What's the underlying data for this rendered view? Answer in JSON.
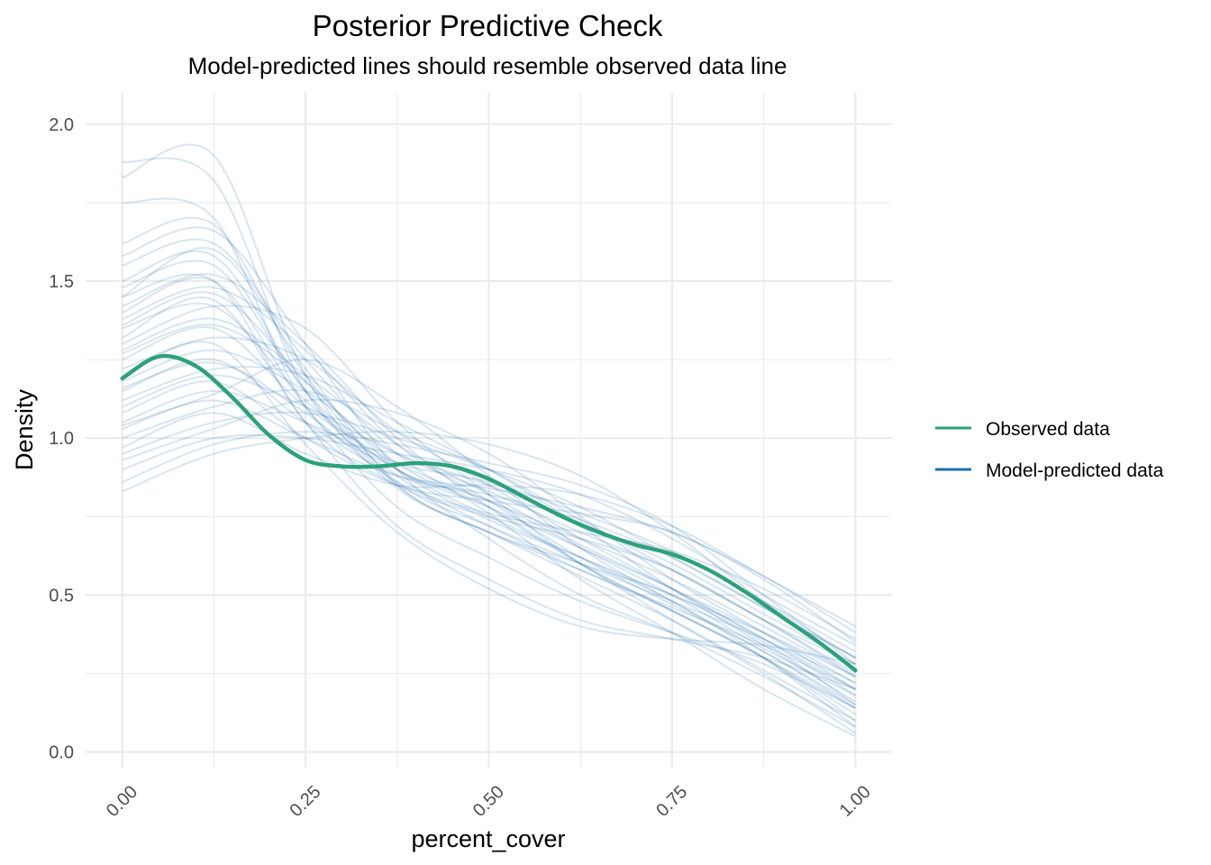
{
  "chart_data": {
    "type": "line",
    "title": "Posterior Predictive Check",
    "subtitle": "Model-predicted lines should resemble observed data line",
    "xlabel": "percent_cover",
    "ylabel": "Density",
    "xlim": [
      -0.05,
      1.05
    ],
    "ylim": [
      -0.05,
      2.1
    ],
    "x_ticks": [
      "0.00",
      "0.25",
      "0.50",
      "0.75",
      "1.00"
    ],
    "y_ticks": [
      "0.0",
      "0.5",
      "1.0",
      "1.5",
      "2.0"
    ],
    "grid": true,
    "legend_position": "right",
    "legend": [
      {
        "label": "Observed data",
        "color": "#2ca17a"
      },
      {
        "label": "Model-predicted data",
        "color": "#1f6fb4"
      }
    ],
    "observed_series": {
      "name": "Observed data",
      "color": "#2ca17a",
      "x": [
        0,
        0.05,
        0.1,
        0.15,
        0.2,
        0.25,
        0.3,
        0.35,
        0.4,
        0.45,
        0.5,
        0.55,
        0.6,
        0.65,
        0.7,
        0.75,
        0.8,
        0.85,
        0.9,
        0.95,
        1.0
      ],
      "y": [
        1.19,
        1.26,
        1.23,
        1.13,
        1.01,
        0.93,
        0.91,
        0.91,
        0.92,
        0.91,
        0.87,
        0.81,
        0.75,
        0.7,
        0.66,
        0.63,
        0.58,
        0.51,
        0.43,
        0.35,
        0.26
      ]
    },
    "predicted_series": {
      "name": "Model-predicted data",
      "color": "#1f6fb4",
      "opacity": 0.18,
      "x": [
        0,
        0.125,
        0.25,
        0.375,
        0.5,
        0.625,
        0.75,
        0.875,
        1.0
      ],
      "draws": [
        [
          1.83,
          1.9,
          1.2,
          0.85,
          0.7,
          0.6,
          0.5,
          0.35,
          0.15
        ],
        [
          1.88,
          1.82,
          1.15,
          0.88,
          0.72,
          0.58,
          0.45,
          0.3,
          0.1
        ],
        [
          1.75,
          1.7,
          1.1,
          0.9,
          0.75,
          0.62,
          0.48,
          0.3,
          0.08
        ],
        [
          1.62,
          1.68,
          1.2,
          0.92,
          0.78,
          0.6,
          0.42,
          0.25,
          0.06
        ],
        [
          1.55,
          1.62,
          1.25,
          0.95,
          0.76,
          0.55,
          0.38,
          0.2,
          0.05
        ],
        [
          1.48,
          1.55,
          1.15,
          0.9,
          0.8,
          0.65,
          0.5,
          0.33,
          0.18
        ],
        [
          1.45,
          1.5,
          1.05,
          0.85,
          0.75,
          0.68,
          0.58,
          0.42,
          0.25
        ],
        [
          1.42,
          1.52,
          1.3,
          1.0,
          0.78,
          0.6,
          0.45,
          0.3,
          0.12
        ],
        [
          1.38,
          1.48,
          1.28,
          0.98,
          0.8,
          0.62,
          0.47,
          0.32,
          0.15
        ],
        [
          1.35,
          1.42,
          1.12,
          0.9,
          0.78,
          0.65,
          0.52,
          0.38,
          0.22
        ],
        [
          1.3,
          1.42,
          1.35,
          1.05,
          0.82,
          0.6,
          0.45,
          0.3,
          0.14
        ],
        [
          1.28,
          1.38,
          1.2,
          0.98,
          0.82,
          0.66,
          0.52,
          0.36,
          0.2
        ],
        [
          1.25,
          1.35,
          1.1,
          0.92,
          0.8,
          0.68,
          0.55,
          0.4,
          0.24
        ],
        [
          1.22,
          1.32,
          1.25,
          1.02,
          0.85,
          0.68,
          0.52,
          0.36,
          0.18
        ],
        [
          1.18,
          1.28,
          1.15,
          0.95,
          0.83,
          0.7,
          0.58,
          0.42,
          0.28
        ],
        [
          1.15,
          1.25,
          1.05,
          0.88,
          0.82,
          0.74,
          0.62,
          0.46,
          0.3
        ],
        [
          1.12,
          1.22,
          1.2,
          1.05,
          0.9,
          0.72,
          0.52,
          0.34,
          0.16
        ],
        [
          1.1,
          1.2,
          1.1,
          0.95,
          0.85,
          0.73,
          0.6,
          0.44,
          0.28
        ],
        [
          1.08,
          1.18,
          1.0,
          0.85,
          0.8,
          0.76,
          0.7,
          0.55,
          0.35
        ],
        [
          1.05,
          1.15,
          1.05,
          0.92,
          0.86,
          0.76,
          0.64,
          0.48,
          0.32
        ],
        [
          1.04,
          1.14,
          1.25,
          1.1,
          0.88,
          0.65,
          0.48,
          0.32,
          0.14
        ],
        [
          1.03,
          1.12,
          1.0,
          0.88,
          0.84,
          0.78,
          0.7,
          0.56,
          0.38
        ],
        [
          1.0,
          1.1,
          1.15,
          1.02,
          0.9,
          0.74,
          0.58,
          0.42,
          0.24
        ],
        [
          0.97,
          1.08,
          0.95,
          0.85,
          0.85,
          0.82,
          0.72,
          0.56,
          0.4
        ],
        [
          0.95,
          1.05,
          1.08,
          1.0,
          0.9,
          0.78,
          0.62,
          0.46,
          0.3
        ],
        [
          0.93,
          1.03,
          1.12,
          1.08,
          0.95,
          0.75,
          0.55,
          0.38,
          0.2
        ],
        [
          0.9,
          1.0,
          1.0,
          0.95,
          0.9,
          0.82,
          0.68,
          0.5,
          0.34
        ],
        [
          0.86,
          0.98,
          1.02,
          0.98,
          0.92,
          0.85,
          0.72,
          0.5,
          0.28
        ],
        [
          0.83,
          0.95,
          1.0,
          1.02,
          0.98,
          0.88,
          0.7,
          0.48,
          0.3
        ],
        [
          1.4,
          1.5,
          1.1,
          0.78,
          0.62,
          0.48,
          0.38,
          0.28,
          0.14
        ],
        [
          1.32,
          1.44,
          1.05,
          0.72,
          0.55,
          0.42,
          0.36,
          0.3,
          0.2
        ],
        [
          1.2,
          1.3,
          0.98,
          0.7,
          0.52,
          0.4,
          0.36,
          0.34,
          0.28
        ],
        [
          1.45,
          1.6,
          1.22,
          0.85,
          0.7,
          0.56,
          0.42,
          0.26,
          0.1
        ],
        [
          1.58,
          1.66,
          1.3,
          0.9,
          0.68,
          0.5,
          0.38,
          0.24,
          0.08
        ],
        [
          1.27,
          1.36,
          1.18,
          0.9,
          0.74,
          0.62,
          0.5,
          0.38,
          0.24
        ],
        [
          1.16,
          1.24,
          1.08,
          0.86,
          0.76,
          0.7,
          0.64,
          0.52,
          0.36
        ],
        [
          1.36,
          1.46,
          1.18,
          0.86,
          0.72,
          0.6,
          0.48,
          0.36,
          0.22
        ],
        [
          1.5,
          1.58,
          1.15,
          0.84,
          0.7,
          0.58,
          0.46,
          0.34,
          0.2
        ]
      ]
    }
  }
}
